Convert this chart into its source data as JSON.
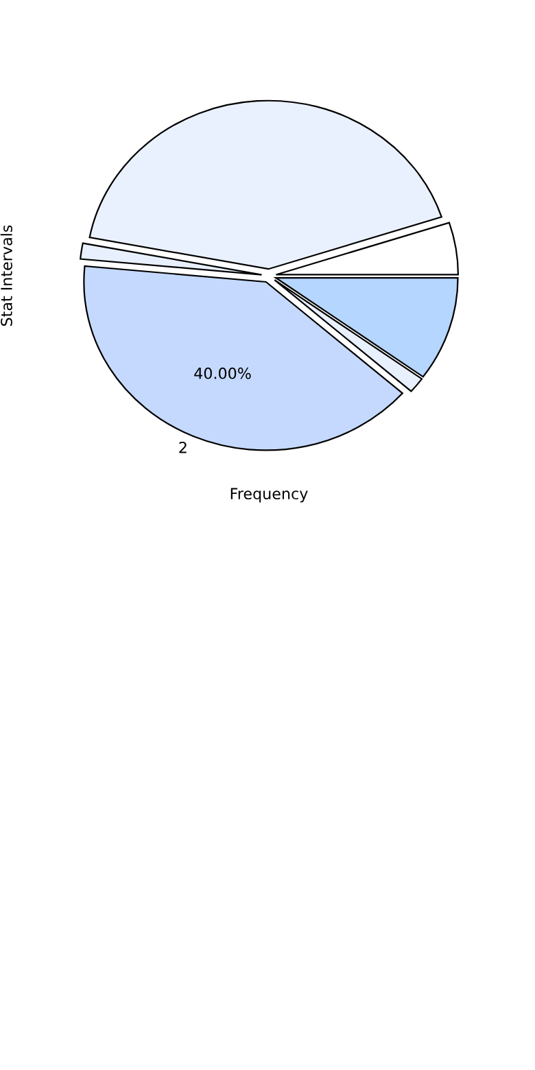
{
  "chart_data": {
    "type": "pie",
    "xlabel": "Frequency",
    "ylabel": "Stat Intervals",
    "categories": [
      null,
      null,
      null,
      "2",
      null,
      null
    ],
    "values": [
      5,
      42,
      1.5,
      40,
      1.5,
      10
    ],
    "value_labels": [
      null,
      null,
      null,
      "40.00%",
      null,
      null
    ],
    "colors": [
      "#ffffff",
      "#eaf1fe",
      "#e8f0fe",
      "#c5d9fe",
      "#e8f0fe",
      "#b5d6ff"
    ],
    "legend": false
  }
}
